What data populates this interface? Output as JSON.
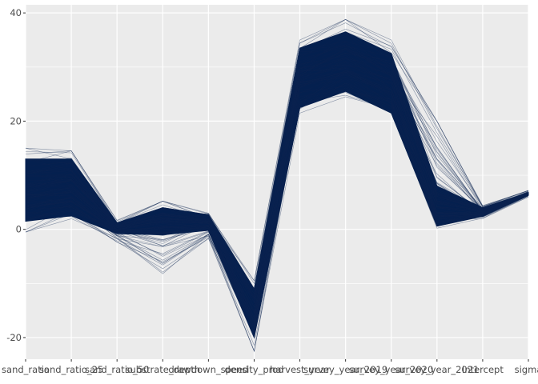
{
  "chart_data": {
    "type": "line",
    "title": "",
    "xlabel": "",
    "ylabel": "",
    "categories": [
      "sand_ratio",
      "sand_ratio_25",
      "sand_ratio_50",
      "substrate_depth",
      "drawdown_speed",
      "density_prod",
      "harvest_year",
      "survey_year_2019",
      "survey_year_2020",
      "survey_year_2021",
      "Intercept",
      "sigma"
    ],
    "y_ticks": [
      -20,
      0,
      20,
      40
    ],
    "ylim": [
      -24,
      41.5
    ],
    "grid": true,
    "legend": "none",
    "colors": {
      "panel": "#EBEBEB",
      "grid": "#FFFFFF",
      "line": "#0B2350",
      "band": "#04204F"
    },
    "series_summary": {
      "description_of_values": "per-axis value ranges spanned by the bundle of draw lines",
      "core_low": [
        1.5,
        2.5,
        -0.8,
        -1.0,
        -0.2,
        -20.0,
        22.5,
        25.5,
        21.5,
        0.6,
        2.4,
        6.3
      ],
      "core_high": [
        13.0,
        13.0,
        1.2,
        4.0,
        2.7,
        -11.0,
        33.5,
        36.5,
        32.5,
        8.0,
        4.0,
        6.8
      ],
      "outer_low": [
        -0.5,
        1.0,
        -2.5,
        -8.5,
        -2.0,
        -22.5,
        21.5,
        24.5,
        21.0,
        0.2,
        2.0,
        6.0
      ],
      "outer_high": [
        15.0,
        14.5,
        1.8,
        5.2,
        3.0,
        -9.5,
        35.0,
        38.8,
        35.0,
        20.0,
        4.4,
        7.2
      ]
    }
  }
}
